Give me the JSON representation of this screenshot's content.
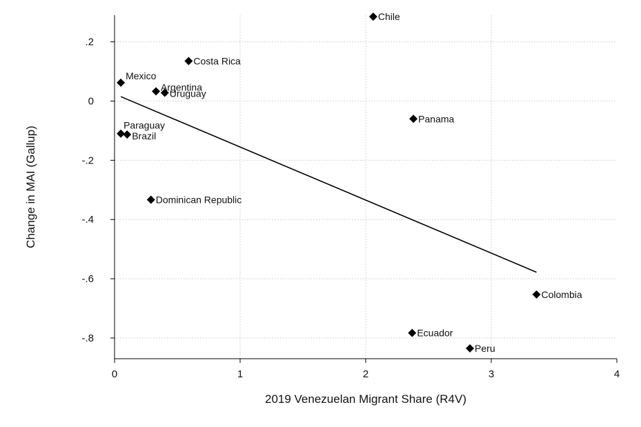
{
  "chart_data": {
    "type": "scatter",
    "xlabel": "2019 Venezuelan Migrant Share (R4V)",
    "ylabel": "Change in MAI (Gallup)",
    "xlim": [
      0,
      4
    ],
    "ylim": [
      -0.87,
      0.29
    ],
    "x_ticks": [
      0,
      1,
      2,
      3,
      4
    ],
    "x_tick_labels": [
      "0",
      "1",
      "2",
      "3",
      "4"
    ],
    "y_ticks": [
      0.2,
      0,
      -0.2,
      -0.4,
      -0.6,
      -0.8
    ],
    "y_tick_labels": [
      ".2",
      "0",
      "-.2",
      "-.4",
      "-.6",
      "-.8"
    ],
    "grid": true,
    "marker": "diamond",
    "points": [
      {
        "label": "Chile",
        "x": 2.06,
        "y": 0.285
      },
      {
        "label": "Costa Rica",
        "x": 0.59,
        "y": 0.135
      },
      {
        "label": "Mexico",
        "x": 0.05,
        "y": 0.062
      },
      {
        "label": "Argentina",
        "x": 0.33,
        "y": 0.033
      },
      {
        "label": "Uruguay",
        "x": 0.4,
        "y": 0.028
      },
      {
        "label": "Panama",
        "x": 2.38,
        "y": -0.06
      },
      {
        "label": "Paraguay",
        "x": 0.05,
        "y": -0.11
      },
      {
        "label": "Brazil",
        "x": 0.1,
        "y": -0.113
      },
      {
        "label": "Dominican Republic",
        "x": 0.29,
        "y": -0.333
      },
      {
        "label": "Colombia",
        "x": 3.36,
        "y": -0.653
      },
      {
        "label": "Ecuador",
        "x": 2.37,
        "y": -0.783
      },
      {
        "label": "Peru",
        "x": 2.83,
        "y": -0.835
      }
    ],
    "fit_line": {
      "x": [
        0.05,
        3.36
      ],
      "y": [
        0.015,
        -0.578
      ]
    }
  }
}
